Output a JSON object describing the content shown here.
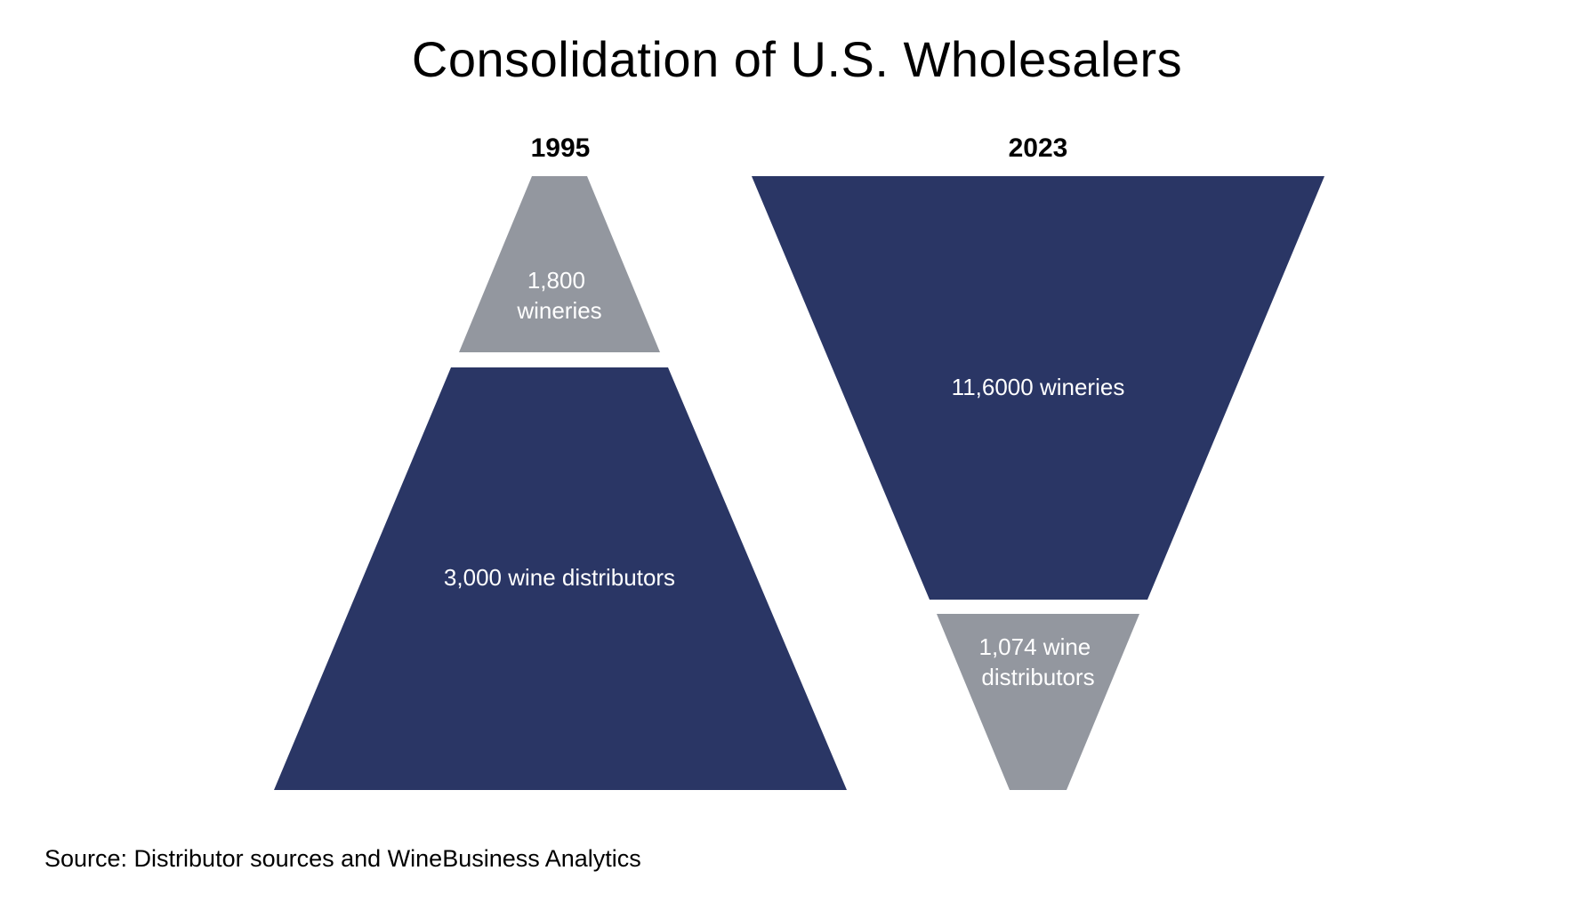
{
  "title": "Consolidation of U.S. Wholesalers",
  "panels": [
    {
      "year": "1995",
      "segments": [
        {
          "role": "top",
          "lines": [
            "1,800",
            "wineries"
          ],
          "color": "#93979f"
        },
        {
          "role": "bottom",
          "lines": [
            "3,000 wine distributors"
          ],
          "color": "#2a3665"
        }
      ]
    },
    {
      "year": "2023",
      "segments": [
        {
          "role": "top",
          "lines": [
            "11,6000 wineries"
          ],
          "color": "#2a3665"
        },
        {
          "role": "bottom",
          "lines": [
            "1,074 wine",
            "distributors"
          ],
          "color": "#93979f"
        }
      ]
    }
  ],
  "source": "Source: Distributor sources and WineBusiness Analytics",
  "colors": {
    "navy": "#2a3665",
    "gray": "#93979f",
    "background": "#ffffff"
  }
}
